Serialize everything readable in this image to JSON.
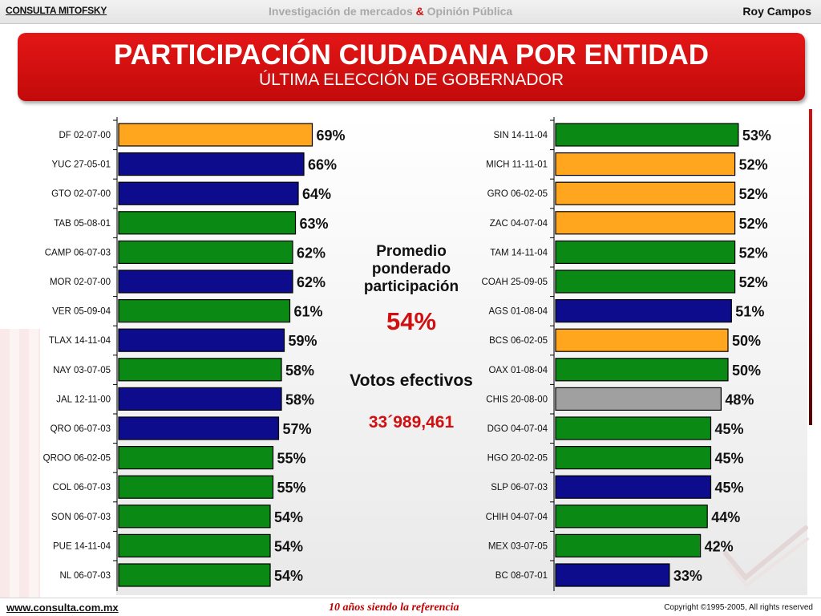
{
  "header": {
    "brand": "CONSULTA MITOFSKY",
    "tagline_left": "Investigación de mercados",
    "tagline_amp": "&",
    "tagline_right": "Opinión Pública",
    "author": "Roy Campos"
  },
  "title": {
    "main": "PARTICIPACIÓN CIUDADANA POR ENTIDAD",
    "sub": "ÚLTIMA ELECCIÓN DE GOBERNADOR"
  },
  "summary": {
    "avg_label": "Promedio ponderado participación",
    "avg_value": "54%",
    "votes_label": "Votos efectivos",
    "votes_value": "33´989,461"
  },
  "colors": {
    "orange": "#ffa51e",
    "blue": "#0c0c8c",
    "green": "#0a8a14",
    "gray": "#a0a0a0"
  },
  "chart_data": [
    {
      "type": "bar",
      "orientation": "horizontal",
      "xlim": [
        0,
        100
      ],
      "categories": [
        "DF 02-07-00",
        "YUC 27-05-01",
        "GTO 02-07-00",
        "TAB 05-08-01",
        "CAMP 06-07-03",
        "MOR 02-07-00",
        "VER 05-09-04",
        "TLAX 14-11-04",
        "NAY 03-07-05",
        "JAL 12-11-00",
        "QRO 06-07-03",
        "QROO 06-02-05",
        "COL 06-07-03",
        "SON 06-07-03",
        "PUE 14-11-04",
        "NL 06-07-03"
      ],
      "values": [
        69,
        66,
        64,
        63,
        62,
        62,
        61,
        59,
        58,
        58,
        57,
        55,
        55,
        54,
        54,
        54
      ],
      "labels": [
        "69%",
        "66%",
        "64%",
        "63%",
        "62%",
        "62%",
        "61%",
        "59%",
        "58%",
        "58%",
        "57%",
        "55%",
        "55%",
        "54%",
        "54%",
        "54%"
      ],
      "colors": [
        "orange",
        "blue",
        "blue",
        "green",
        "green",
        "blue",
        "green",
        "blue",
        "green",
        "blue",
        "blue",
        "green",
        "green",
        "green",
        "green",
        "green"
      ]
    },
    {
      "type": "bar",
      "orientation": "horizontal",
      "xlim": [
        0,
        100
      ],
      "categories": [
        "SIN 14-11-04",
        "MICH 11-11-01",
        "GRO 06-02-05",
        "ZAC 04-07-04",
        "TAM 14-11-04",
        "COAH 25-09-05",
        "AGS 01-08-04",
        "BCS 06-02-05",
        "OAX 01-08-04",
        "CHIS 20-08-00",
        "DGO 04-07-04",
        "HGO 20-02-05",
        "SLP 06-07-03",
        "CHIH 04-07-04",
        "MEX 03-07-05",
        "BC 08-07-01"
      ],
      "values": [
        53,
        52,
        52,
        52,
        52,
        52,
        51,
        50,
        50,
        48,
        45,
        45,
        45,
        44,
        42,
        33
      ],
      "labels": [
        "53%",
        "52%",
        "52%",
        "52%",
        "52%",
        "52%",
        "51%",
        "50%",
        "50%",
        "48%",
        "45%",
        "45%",
        "45%",
        "44%",
        "42%",
        "33%"
      ],
      "colors": [
        "green",
        "orange",
        "orange",
        "orange",
        "green",
        "green",
        "blue",
        "orange",
        "green",
        "gray",
        "green",
        "green",
        "blue",
        "green",
        "green",
        "blue"
      ]
    }
  ],
  "footer": {
    "site": "www.consulta.com.mx",
    "slogan": "10 años siendo la referencia",
    "copyright": "Copyright ©1995-2005, All rights reserved"
  }
}
